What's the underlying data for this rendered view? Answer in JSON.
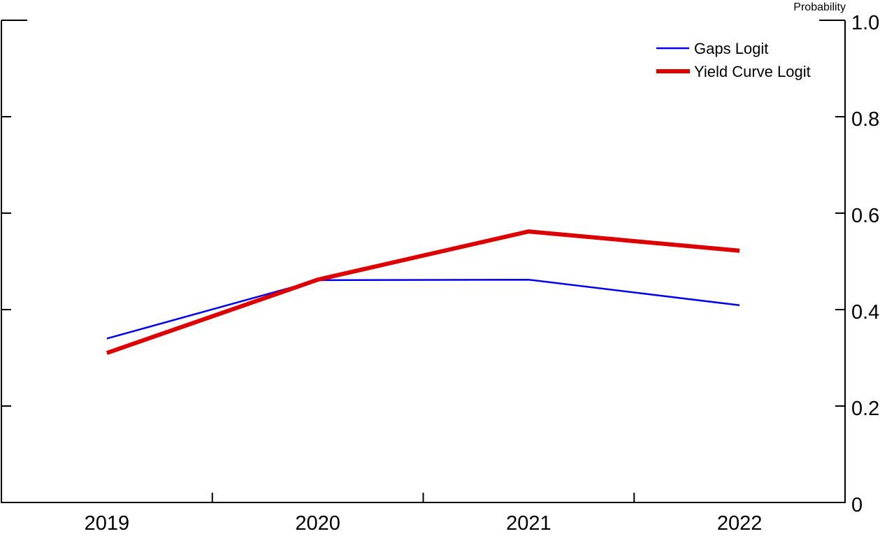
{
  "chart_data": {
    "type": "line",
    "title": "",
    "xlabel": "",
    "ylabel": "Probability",
    "categories": [
      "2019",
      "2020",
      "2021",
      "2022"
    ],
    "series": [
      {
        "name": "Gaps Logit",
        "color": "#0000EE",
        "stroke_width": 2.5,
        "values": [
          0.34,
          0.461,
          0.462,
          0.409
        ]
      },
      {
        "name": "Yield Curve Logit",
        "color": "#DD0000",
        "stroke_width": 6,
        "values": [
          0.31,
          0.462,
          0.562,
          0.522
        ]
      }
    ],
    "ylim": [
      0,
      1.0
    ],
    "y_ticks": [
      0,
      0.2,
      0.4,
      0.6,
      0.8,
      1.0
    ],
    "y_tick_labels": [
      "0",
      "0.2",
      "0.4",
      "0.6",
      "0.8",
      "1.0"
    ],
    "y_axis_side": "right",
    "x_tick_style": "interval-boundaries",
    "legend_position": "top-right",
    "grid": false,
    "axis_color": "#000000",
    "background_color": "#FFFFFF"
  }
}
